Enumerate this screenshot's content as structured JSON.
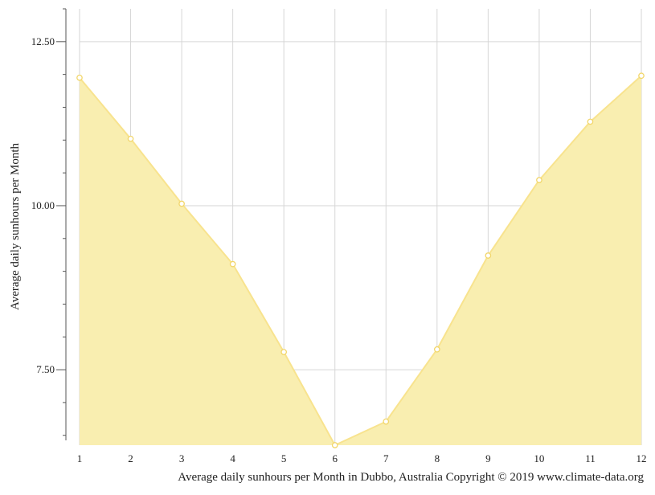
{
  "chart_data": {
    "type": "area",
    "title": "",
    "xlabel": "Average daily sunhours per Month in Dubbo, Australia Copyright © 2019 www.climate-data.org",
    "ylabel": "Average daily sunhours per Month",
    "x": [
      1,
      2,
      3,
      4,
      5,
      6,
      7,
      8,
      9,
      10,
      11,
      12
    ],
    "x_tick_labels": [
      "1",
      "2",
      "3",
      "4",
      "5",
      "6",
      "7",
      "8",
      "9",
      "10",
      "11",
      "12"
    ],
    "series": [
      {
        "values": [
          11.95,
          11.02,
          10.03,
          9.11,
          7.77,
          6.35,
          6.71,
          7.81,
          9.24,
          10.39,
          11.28,
          11.98
        ]
      }
    ],
    "ylim": [
      6.35,
      13.0
    ],
    "y_major_ticks": [
      7.5,
      10.0,
      12.5
    ],
    "y_major_tick_labels": [
      "7.50",
      "10.00",
      "12.50"
    ],
    "y_minor_ticks": [
      6.5,
      7.0,
      8.0,
      8.5,
      9.0,
      9.5,
      10.5,
      11.0,
      11.5,
      12.0,
      13.0
    ],
    "grid": true,
    "legend": "none",
    "colors": {
      "fill": "#f9eeb0",
      "line": "#f8e38e",
      "marker_stroke": "#f2d66a",
      "marker_fill": "#ffffff",
      "grid": "#d6d6d6",
      "axis": "#555555"
    }
  }
}
